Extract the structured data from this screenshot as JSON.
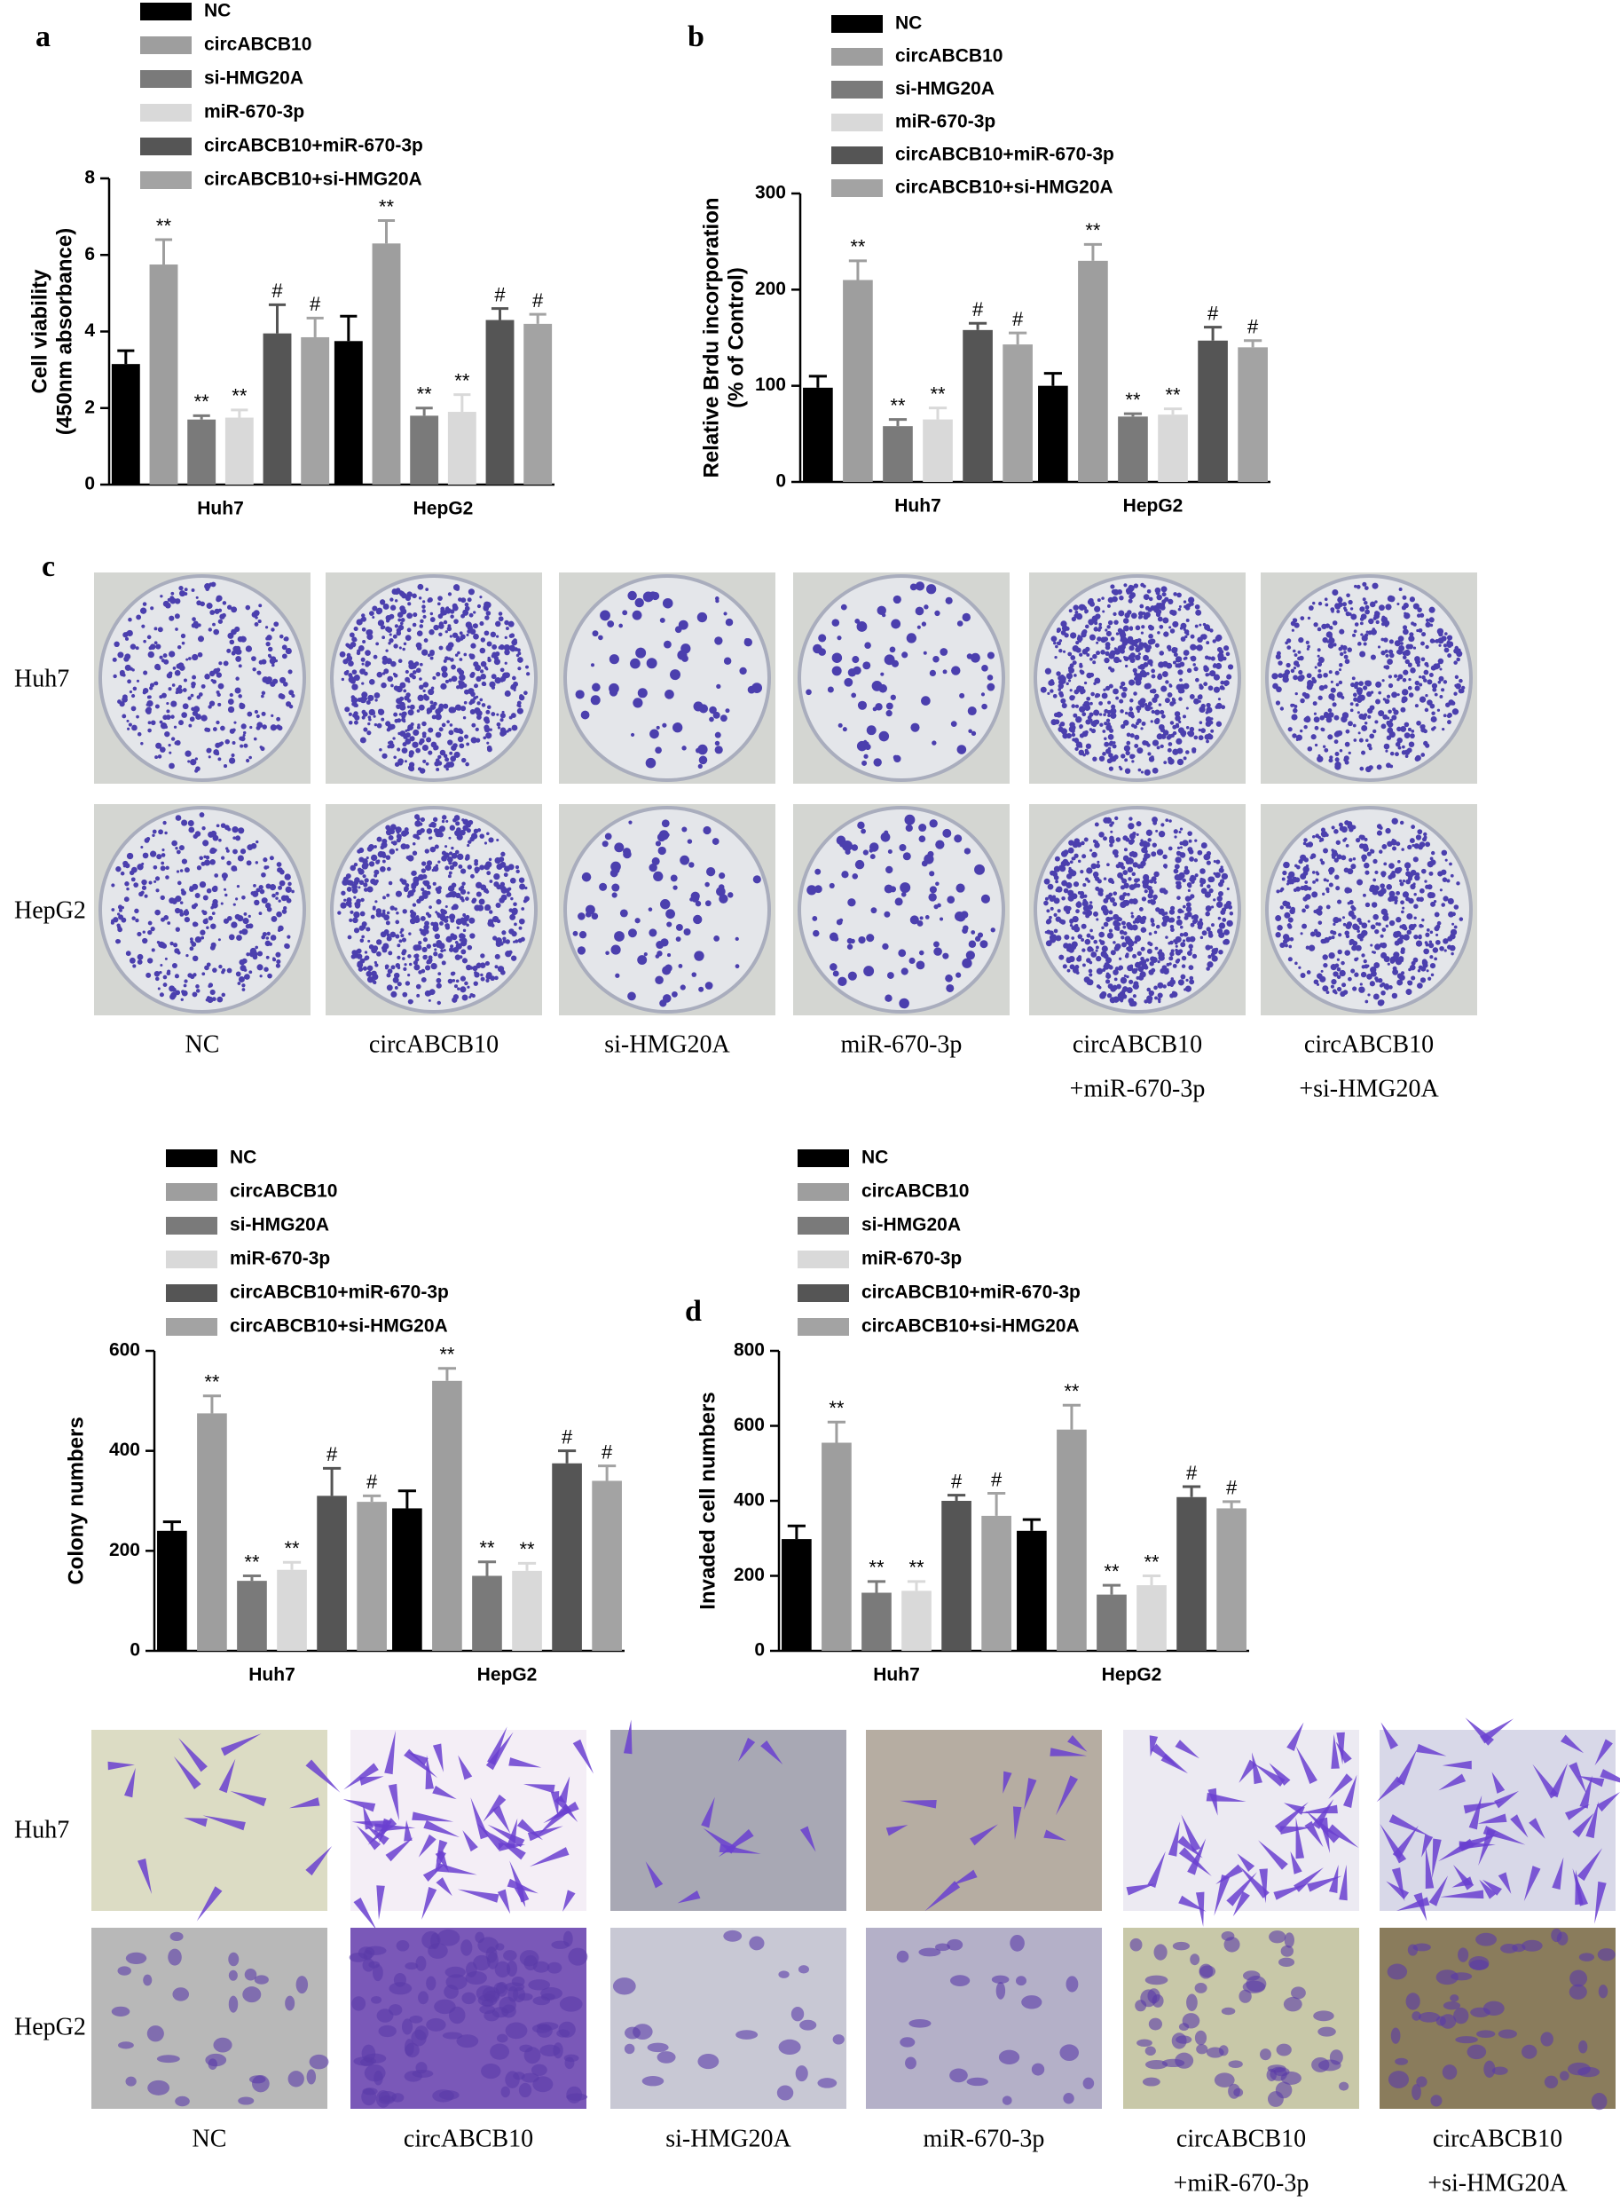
{
  "chart_data": [
    {
      "type": "bar",
      "panel": "a",
      "ylabel": [
        "Cell viability",
        "(450nm absorbance)"
      ],
      "categories": [
        "Huh7",
        "HepG2"
      ],
      "ylim": [
        0,
        8
      ],
      "yticks": [
        0,
        2,
        4,
        6,
        8
      ],
      "series": [
        {
          "name": "NC",
          "color": "#000000",
          "values": [
            3.15,
            3.75
          ],
          "errors": [
            0.35,
            0.65
          ],
          "annotations": [
            null,
            null
          ]
        },
        {
          "name": "circABCB10",
          "color": "#9e9e9e",
          "values": [
            5.75,
            6.3
          ],
          "errors": [
            0.65,
            0.6
          ],
          "annotations": [
            "**",
            "**"
          ]
        },
        {
          "name": "si-HMG20A",
          "color": "#7a7a7a",
          "values": [
            1.7,
            1.8
          ],
          "errors": [
            0.1,
            0.2
          ],
          "annotations": [
            "**",
            "**"
          ]
        },
        {
          "name": "miR-670-3p",
          "color": "#d9d9d9",
          "values": [
            1.75,
            1.9
          ],
          "errors": [
            0.2,
            0.45
          ],
          "annotations": [
            "**",
            "**"
          ]
        },
        {
          "name": "circABCB10+miR-670-3p",
          "color": "#555555",
          "values": [
            3.95,
            4.3
          ],
          "errors": [
            0.75,
            0.3
          ],
          "annotations": [
            "#",
            "#"
          ]
        },
        {
          "name": "circABCB10+si-HMG20A",
          "color": "#a3a3a3",
          "values": [
            3.85,
            4.2
          ],
          "errors": [
            0.5,
            0.25
          ],
          "annotations": [
            "#",
            "#"
          ]
        }
      ]
    },
    {
      "type": "bar",
      "panel": "b",
      "ylabel": [
        "Relative Brdu incorporation",
        "(% of Control)"
      ],
      "categories": [
        "Huh7",
        "HepG2"
      ],
      "ylim": [
        0,
        300
      ],
      "yticks": [
        0,
        100,
        200,
        300
      ],
      "series": [
        {
          "name": "NC",
          "color": "#000000",
          "values": [
            98,
            100
          ],
          "errors": [
            12,
            13
          ],
          "annotations": [
            null,
            null
          ]
        },
        {
          "name": "circABCB10",
          "color": "#9e9e9e",
          "values": [
            210,
            230
          ],
          "errors": [
            20,
            17
          ],
          "annotations": [
            "**",
            "**"
          ]
        },
        {
          "name": "si-HMG20A",
          "color": "#7a7a7a",
          "values": [
            58,
            68
          ],
          "errors": [
            7,
            3
          ],
          "annotations": [
            "**",
            "**"
          ]
        },
        {
          "name": "miR-670-3p",
          "color": "#d9d9d9",
          "values": [
            65,
            70
          ],
          "errors": [
            12,
            6
          ],
          "annotations": [
            "**",
            "**"
          ]
        },
        {
          "name": "circABCB10+miR-670-3p",
          "color": "#555555",
          "values": [
            158,
            147
          ],
          "errors": [
            7,
            14
          ],
          "annotations": [
            "#",
            "#"
          ]
        },
        {
          "name": "circABCB10+si-HMG20A",
          "color": "#a3a3a3",
          "values": [
            143,
            140
          ],
          "errors": [
            12,
            7
          ],
          "annotations": [
            "#",
            "#"
          ]
        }
      ]
    },
    {
      "type": "bar",
      "ylabel": [
        "Colony numbers"
      ],
      "categories": [
        "Huh7",
        "HepG2"
      ],
      "ylim": [
        0,
        600
      ],
      "yticks": [
        0,
        200,
        400,
        600
      ],
      "series": [
        {
          "name": "NC",
          "color": "#000000",
          "values": [
            240,
            285
          ],
          "errors": [
            18,
            35
          ],
          "annotations": [
            null,
            null
          ]
        },
        {
          "name": "circABCB10",
          "color": "#9e9e9e",
          "values": [
            475,
            540
          ],
          "errors": [
            35,
            25
          ],
          "annotations": [
            "**",
            "**"
          ]
        },
        {
          "name": "si-HMG20A",
          "color": "#7a7a7a",
          "values": [
            140,
            150
          ],
          "errors": [
            10,
            28
          ],
          "annotations": [
            "**",
            "**"
          ]
        },
        {
          "name": "miR-670-3p",
          "color": "#d9d9d9",
          "values": [
            162,
            160
          ],
          "errors": [
            15,
            15
          ],
          "annotations": [
            "**",
            "**"
          ]
        },
        {
          "name": "circABCB10+miR-670-3p",
          "color": "#555555",
          "values": [
            310,
            375
          ],
          "errors": [
            55,
            25
          ],
          "annotations": [
            "#",
            "#"
          ]
        },
        {
          "name": "circABCB10+si-HMG20A",
          "color": "#a3a3a3",
          "values": [
            298,
            340
          ],
          "errors": [
            12,
            30
          ],
          "annotations": [
            "#",
            "#"
          ]
        }
      ]
    },
    {
      "type": "bar",
      "panel": "d",
      "ylabel": [
        "Invaded cell numbers"
      ],
      "categories": [
        "Huh7",
        "HepG2"
      ],
      "ylim": [
        0,
        800
      ],
      "yticks": [
        0,
        200,
        400,
        600,
        800
      ],
      "series": [
        {
          "name": "NC",
          "color": "#000000",
          "values": [
            298,
            320
          ],
          "errors": [
            35,
            30
          ],
          "annotations": [
            null,
            null
          ]
        },
        {
          "name": "circABCB10",
          "color": "#9e9e9e",
          "values": [
            555,
            590
          ],
          "errors": [
            55,
            65
          ],
          "annotations": [
            "**",
            "**"
          ]
        },
        {
          "name": "si-HMG20A",
          "color": "#7a7a7a",
          "values": [
            155,
            150
          ],
          "errors": [
            30,
            25
          ],
          "annotations": [
            "**",
            "**"
          ]
        },
        {
          "name": "miR-670-3p",
          "color": "#d9d9d9",
          "values": [
            160,
            175
          ],
          "errors": [
            25,
            25
          ],
          "annotations": [
            "**",
            "**"
          ]
        },
        {
          "name": "circABCB10+miR-670-3p",
          "color": "#555555",
          "values": [
            400,
            410
          ],
          "errors": [
            15,
            28
          ],
          "annotations": [
            "#",
            "#"
          ]
        },
        {
          "name": "circABCB10+si-HMG20A",
          "color": "#a3a3a3",
          "values": [
            360,
            380
          ],
          "errors": [
            60,
            18
          ],
          "annotations": [
            "#",
            "#"
          ]
        }
      ]
    }
  ],
  "colony_assay": {
    "panel": "c",
    "row_labels": [
      "Huh7",
      "HepG2"
    ],
    "column_labels": [
      [
        "NC"
      ],
      [
        "circABCB10"
      ],
      [
        "si-HMG20A"
      ],
      [
        "miR-670-3p"
      ],
      [
        "circABCB10",
        "+miR-670-3p"
      ],
      [
        "circABCB10",
        "+si-HMG20A"
      ]
    ]
  },
  "invasion_assay": {
    "row_labels": [
      "Huh7",
      "HepG2"
    ],
    "column_labels": [
      [
        "NC"
      ],
      [
        "circABCB10"
      ],
      [
        "si-HMG20A"
      ],
      [
        "miR-670-3p"
      ],
      [
        "circABCB10",
        "+miR-670-3p"
      ],
      [
        "circABCB10",
        "+si-HMG20A"
      ]
    ]
  }
}
